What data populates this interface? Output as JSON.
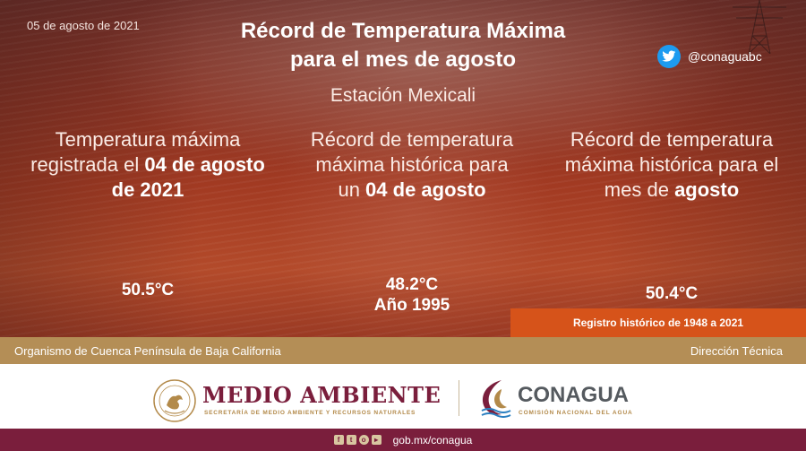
{
  "header": {
    "date": "05 de agosto de 2021",
    "title_line1": "Récord de Temperatura Máxima",
    "title_line2": "para el mes de agosto",
    "twitter_handle": "@conaguabc",
    "station": "Estación Mexicali"
  },
  "columns": [
    {
      "text_before": "Temperatura máxima registrada el ",
      "bold": "04 de agosto de 2021",
      "text_after": "",
      "value": "50.5°C"
    },
    {
      "text_before": "Récord de temperatura máxima histórica para un ",
      "bold": "04 de agosto",
      "text_after": "",
      "value": "48.2°C",
      "value_line2": "Año 1995"
    },
    {
      "text_before": "Récord de temperatura máxima histórica para el mes de ",
      "bold": "agosto",
      "text_after": "",
      "value": "50.4°C"
    }
  ],
  "record_note": "Registro histórico  de 1948 a 2021",
  "strip": {
    "left": "Organismo de Cuenca Península de Baja California",
    "right": "Dirección Técnica"
  },
  "footer": {
    "ma_title": "MEDIO AMBIENTE",
    "ma_subtitle": "SECRETARÍA DE MEDIO AMBIENTE Y RECURSOS NATURALES",
    "conagua_title": "CONAGUA",
    "conagua_subtitle": "COMISIÓN NACIONAL DEL AGUA"
  },
  "bottom_bar": {
    "social_icons": [
      "facebook-icon",
      "twitter-icon",
      "instagram-icon",
      "youtube-icon"
    ],
    "url": "gob.mx/conagua"
  },
  "colors": {
    "hero": "#a23a22",
    "record_bar": "#d6531a",
    "strip": "#b48e56",
    "brand_wine": "#7a1e3c",
    "twitter_blue": "#1d9bf0"
  }
}
